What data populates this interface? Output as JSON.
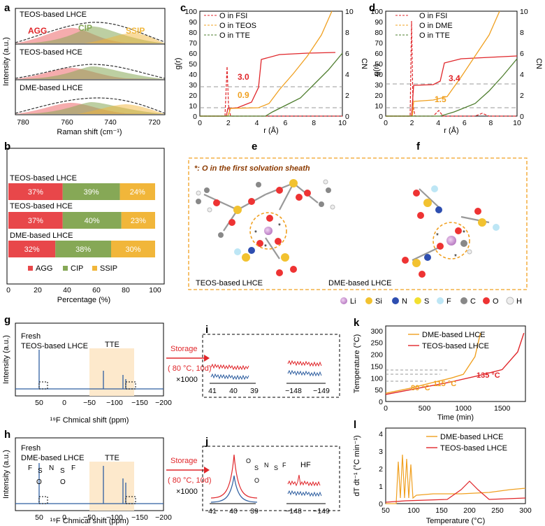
{
  "panels": {
    "a": {
      "label": "a",
      "sub_titles": [
        "TEOS-based LHCE",
        "TEOS-based HCE",
        "DME-based LHCE"
      ],
      "species": {
        "agg": "AGG",
        "cip": "CIP",
        "ssip": "SSIP"
      },
      "ylabel": "Intensity (a.u.)",
      "xlabel": "Raman shift (cm⁻¹)",
      "xticks": [
        "780",
        "760",
        "740",
        "720"
      ]
    },
    "b": {
      "label": "b",
      "xlabel": "Percentage (%)",
      "xticks": [
        "0",
        "20",
        "40",
        "60",
        "80",
        "100"
      ],
      "legend": [
        "AGG",
        "CIP",
        "SSIP"
      ]
    },
    "c": {
      "label": "c",
      "ylabel_left": "g(r)",
      "ylabel_right": "CN",
      "xlabel": "r (Å)",
      "legend": [
        "O in FSI",
        "O in TEOS",
        "O in TTE"
      ],
      "annotations": [
        "3.0",
        "0.9"
      ],
      "yticks_left": [
        "0",
        "10",
        "20",
        "30",
        "40",
        "50",
        "60",
        "70",
        "80",
        "90",
        "100"
      ],
      "yticks_right": [
        "0",
        "2",
        "4",
        "6",
        "8",
        "10"
      ],
      "xticks": [
        "0",
        "2",
        "4",
        "6",
        "8",
        "10"
      ]
    },
    "d": {
      "label": "d",
      "ylabel_left": "g(r)",
      "ylabel_right": "CN",
      "xlabel": "r (Å)",
      "legend": [
        "O in FSI",
        "O in DME",
        "O in TTE"
      ],
      "annotations": [
        "3.4",
        "1.5"
      ],
      "yticks_left": [
        "0",
        "10",
        "20",
        "30",
        "40",
        "50",
        "60",
        "70",
        "80",
        "90",
        "100"
      ],
      "yticks_right": [
        "0",
        "2",
        "4",
        "6",
        "8",
        "10"
      ],
      "xticks": [
        "0",
        "2",
        "4",
        "6",
        "8",
        "10"
      ]
    },
    "e": {
      "label": "e",
      "note": "*: O in the first solvation sheath",
      "caption": "TEOS-based LHCE"
    },
    "f": {
      "label": "f",
      "caption": "DME-based LHCE"
    },
    "atom_legend": [
      "Li",
      "Si",
      "N",
      "S",
      "F",
      "C",
      "O",
      "H"
    ],
    "g": {
      "label": "g",
      "line1": "Fresh",
      "line2": "TEOS-based LHCE",
      "region": "TTE",
      "ylabel": "Intensity (a.u.)",
      "xlabel": "¹⁹F Chmical shift (ppm)",
      "xticks": [
        "50",
        "0",
        "−50",
        "−100",
        "−150",
        "−200"
      ]
    },
    "h": {
      "label": "h",
      "line1": "Fresh",
      "line2": "DME-based LHCE",
      "region": "TTE",
      "ylabel": "Intensity (a.u.)",
      "xlabel": "¹⁹F Chmical shift (ppm)",
      "xticks": [
        "50",
        "0",
        "−50",
        "−100",
        "−150",
        "−200"
      ]
    },
    "storage": {
      "line1": "Storage",
      "line2": "( 80 °C, 10d)",
      "mult": "×1000"
    },
    "i": {
      "label": "i",
      "xticks_left": [
        "41",
        "40",
        "39"
      ],
      "xticks_right": [
        "−148",
        "−149"
      ]
    },
    "j": {
      "label": "j",
      "xticks_left": [
        "41",
        "40",
        "39"
      ],
      "xticks_right": [
        "−148",
        "−149"
      ],
      "hf": "HF"
    },
    "k": {
      "label": "k",
      "legend": [
        "DME-based LHCE",
        "TEOS-based LHCE"
      ],
      "ylabel": "Temperature (°C)",
      "xlabel": "Time (min)",
      "yticks": [
        "0",
        "50",
        "100",
        "150",
        "200",
        "250",
        "300"
      ],
      "xticks": [
        "0",
        "500",
        "1000",
        "1500"
      ],
      "annotations": [
        "80 °C",
        "115 °C",
        "135 °C"
      ]
    },
    "l": {
      "label": "l",
      "legend": [
        "DME-based LHCE",
        "TEOS-based LHCE"
      ],
      "ylabel": "dT dt⁻¹ (°C min⁻¹)",
      "xlabel": "Temperature (°C)",
      "yticks": [
        "0",
        "1",
        "2",
        "3",
        "4"
      ],
      "xticks": [
        "50",
        "100",
        "150",
        "200",
        "250",
        "300"
      ]
    }
  },
  "chart_data": [
    {
      "type": "bar",
      "id": "b",
      "categories": [
        "TEOS-based LHCE",
        "TEOS-based HCE",
        "DME-based LHCE"
      ],
      "series": [
        {
          "name": "AGG",
          "values": [
            37,
            37,
            32
          ],
          "labels": [
            "37%",
            "37%",
            "32%"
          ]
        },
        {
          "name": "CIP",
          "values": [
            39,
            40,
            38
          ],
          "labels": [
            "39%",
            "40%",
            "38%"
          ]
        },
        {
          "name": "SSIP",
          "values": [
            24,
            23,
            30
          ],
          "labels": [
            "24%",
            "23%",
            "30%"
          ]
        }
      ],
      "xlim": [
        0,
        100
      ],
      "xlabel": "Percentage (%)",
      "stacked": true
    },
    {
      "type": "line",
      "id": "k",
      "series": [
        {
          "name": "DME-based LHCE",
          "x": [
            0,
            300,
            600,
            850,
            1000,
            1150,
            1220
          ],
          "y": [
            35,
            55,
            80,
            100,
            115,
            190,
            290
          ]
        },
        {
          "name": "TEOS-based LHCE",
          "x": [
            0,
            400,
            800,
            1200,
            1500,
            1700,
            1780
          ],
          "y": [
            30,
            55,
            80,
            110,
            135,
            210,
            290
          ]
        }
      ],
      "xlim": [
        0,
        1800
      ],
      "ylim": [
        0,
        320
      ],
      "xlabel": "Time (min)",
      "ylabel": "Temperature (°C)"
    }
  ],
  "colors": {
    "agg": "#e8474a",
    "cip": "#86a856",
    "ssip": "#f1b63a",
    "red": "#e0262a",
    "orange": "#f0a020",
    "green": "#4e7d2e",
    "blue": "#2f5fa0",
    "peach": "#fde9cc"
  }
}
